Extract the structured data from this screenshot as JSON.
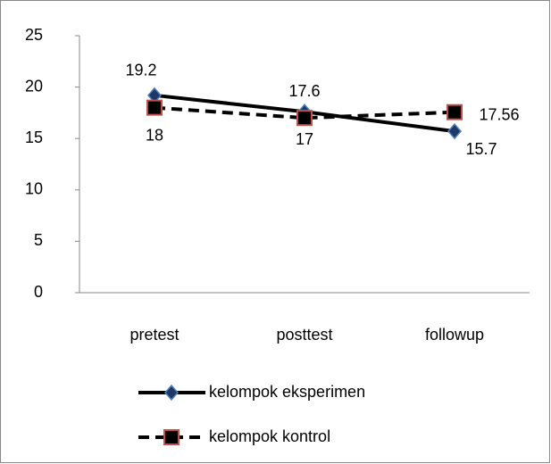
{
  "chart_data": {
    "type": "line",
    "categories": [
      "pretest",
      "posttest",
      "followup"
    ],
    "series": [
      {
        "name": "kelompok eksperimen",
        "color": "#000000",
        "dashed": false,
        "marker": "diamond",
        "marker_fill": "#1f3864",
        "marker_edge": "#4f81bd",
        "values": [
          19.2,
          17.6,
          15.7
        ]
      },
      {
        "name": "kelompok kontrol",
        "color": "#000000",
        "dashed": true,
        "marker": "square",
        "marker_fill": "#000000",
        "marker_edge": "#c0504d",
        "values": [
          18,
          17,
          17.56
        ]
      }
    ],
    "ylim": [
      0,
      25
    ],
    "yticks": [
      0,
      5,
      10,
      15,
      20,
      25
    ],
    "grid": false,
    "legend": "bottom"
  }
}
